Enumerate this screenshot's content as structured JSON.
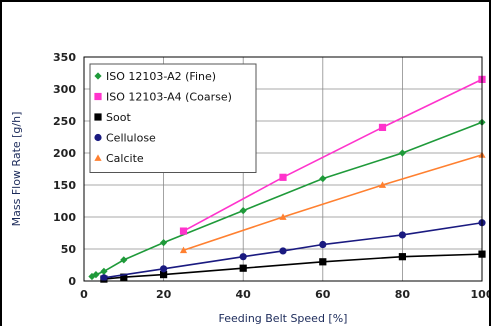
{
  "chart_data": {
    "type": "line",
    "title": "",
    "xlabel": "Feeding Belt Speed [%]",
    "ylabel": "Mass Flow Rate [g/h]",
    "xlim": [
      0,
      100
    ],
    "ylim": [
      0,
      350
    ],
    "x_ticks": [
      0,
      20,
      40,
      60,
      80,
      100
    ],
    "y_ticks": [
      0,
      50,
      100,
      150,
      200,
      250,
      300,
      350
    ],
    "grid": true,
    "legend_position": "top-left",
    "series": [
      {
        "name": "ISO 12103-A2 (Fine)",
        "color": "#1f9a3a",
        "marker": "diamond",
        "x": [
          2,
          3,
          5,
          10,
          20,
          40,
          60,
          80,
          100
        ],
        "y": [
          7,
          10,
          15,
          33,
          60,
          110,
          160,
          200,
          248
        ]
      },
      {
        "name": "ISO 12103-A4 (Coarse)",
        "color": "#ff33cc",
        "marker": "square",
        "x": [
          25,
          50,
          75,
          100
        ],
        "y": [
          78,
          162,
          240,
          315
        ]
      },
      {
        "name": "Soot",
        "color": "#000000",
        "marker": "square",
        "x": [
          5,
          10,
          20,
          40,
          60,
          80,
          100
        ],
        "y": [
          3,
          6,
          10,
          20,
          30,
          38,
          42
        ]
      },
      {
        "name": "Cellulose",
        "color": "#1a1a80",
        "marker": "circle",
        "x": [
          5,
          20,
          40,
          50,
          60,
          80,
          100
        ],
        "y": [
          5,
          19,
          38,
          47,
          57,
          72,
          91
        ]
      },
      {
        "name": "Calcite",
        "color": "#ff8030",
        "marker": "triangle",
        "x": [
          25,
          50,
          75,
          100
        ],
        "y": [
          48,
          100,
          150,
          197
        ]
      }
    ]
  }
}
